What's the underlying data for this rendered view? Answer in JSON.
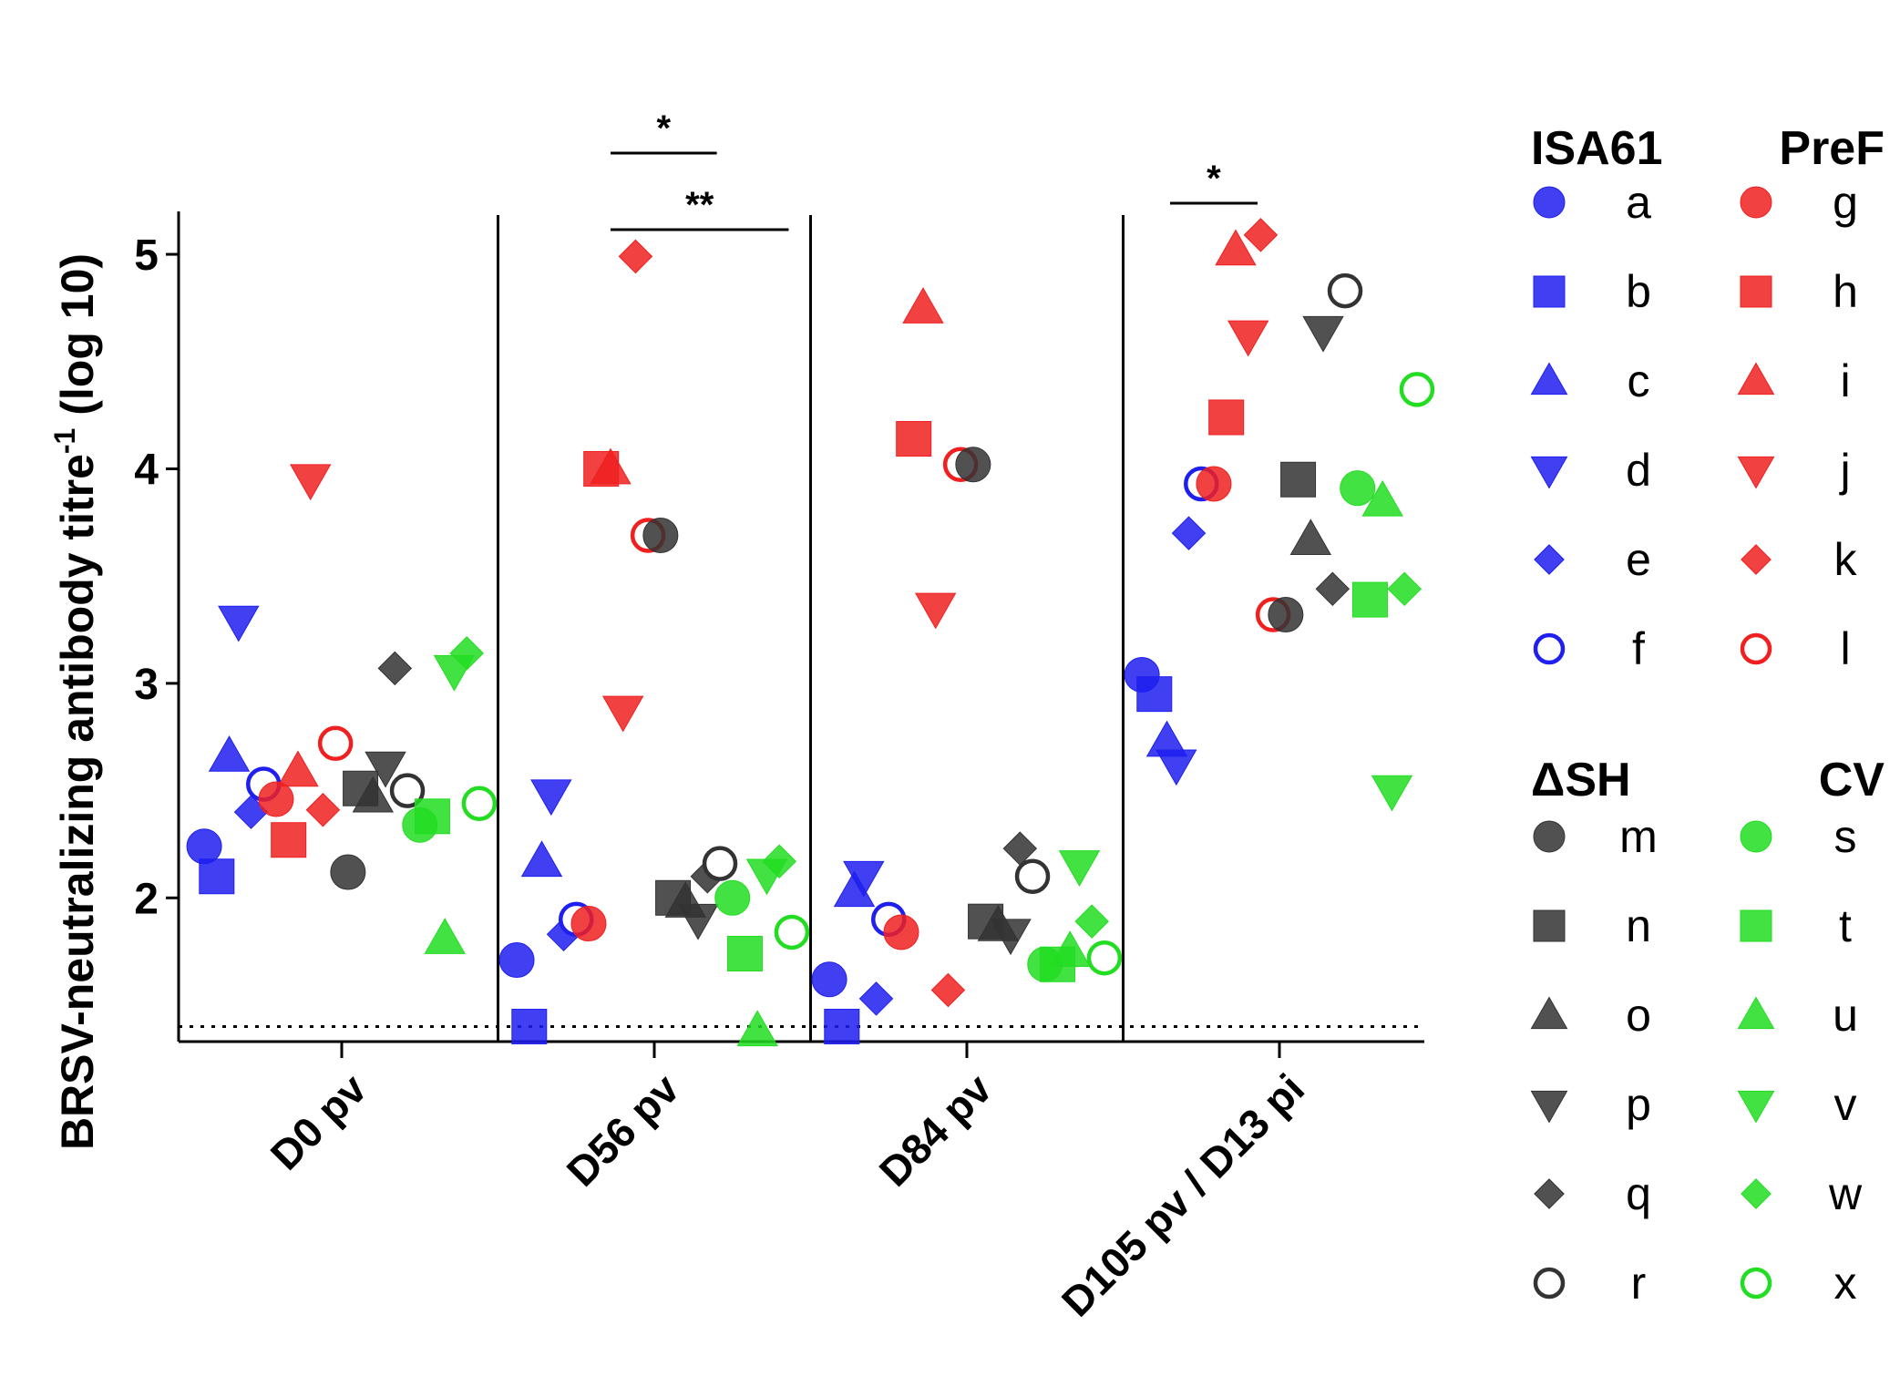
{
  "chart_data": {
    "type": "scatter",
    "ylabel": "BRSV-neutralizing antibody titre",
    "ylabel_sup": "-1",
    "ylabel_suffix": " (log 10)",
    "ylim": [
      1.33,
      5.2
    ],
    "yticks": [
      2,
      3,
      4,
      5
    ],
    "detection_limit": 1.4,
    "categories": [
      "D0 pv",
      "D56 pv",
      "D84 pv",
      "D105 pv / D13 pi"
    ],
    "significance": [
      {
        "label": "*",
        "from": 0.86,
        "to": 1.2
      },
      {
        "label": "**",
        "from": 0.86,
        "to": 1.43
      },
      {
        "label": "*",
        "from": 2.65,
        "to": 2.93
      }
    ],
    "colors": {
      "ISA61": "#1f1ff0",
      "PreF": "#f02020",
      "ΔSH": "#333333",
      "CV": "#22dd22"
    },
    "groups": [
      {
        "name": "ISA61",
        "animals": [
          {
            "id": "a",
            "shape": "circle",
            "fill": true
          },
          {
            "id": "b",
            "shape": "square",
            "fill": true
          },
          {
            "id": "c",
            "shape": "triangle-up",
            "fill": true
          },
          {
            "id": "d",
            "shape": "triangle-down",
            "fill": true
          },
          {
            "id": "e",
            "shape": "diamond",
            "fill": true
          },
          {
            "id": "f",
            "shape": "circle",
            "fill": false
          }
        ]
      },
      {
        "name": "PreF",
        "animals": [
          {
            "id": "g",
            "shape": "circle",
            "fill": true
          },
          {
            "id": "h",
            "shape": "square",
            "fill": true
          },
          {
            "id": "i",
            "shape": "triangle-up",
            "fill": true
          },
          {
            "id": "j",
            "shape": "triangle-down",
            "fill": true
          },
          {
            "id": "k",
            "shape": "diamond",
            "fill": true
          },
          {
            "id": "l",
            "shape": "circle",
            "fill": false
          }
        ]
      },
      {
        "name": "ΔSH",
        "animals": [
          {
            "id": "m",
            "shape": "circle",
            "fill": true
          },
          {
            "id": "n",
            "shape": "square",
            "fill": true
          },
          {
            "id": "o",
            "shape": "triangle-up",
            "fill": true
          },
          {
            "id": "p",
            "shape": "triangle-down",
            "fill": true
          },
          {
            "id": "q",
            "shape": "diamond",
            "fill": true
          },
          {
            "id": "r",
            "shape": "circle",
            "fill": false
          }
        ]
      },
      {
        "name": "CV",
        "animals": [
          {
            "id": "s",
            "shape": "circle",
            "fill": true
          },
          {
            "id": "t",
            "shape": "square",
            "fill": true
          },
          {
            "id": "u",
            "shape": "triangle-up",
            "fill": true
          },
          {
            "id": "v",
            "shape": "triangle-down",
            "fill": true
          },
          {
            "id": "w",
            "shape": "diamond",
            "fill": true
          },
          {
            "id": "x",
            "shape": "circle",
            "fill": false
          }
        ]
      }
    ],
    "points": [
      {
        "animal": "a",
        "x": -0.44,
        "y": 2.24
      },
      {
        "animal": "b",
        "x": -0.4,
        "y": 2.1
      },
      {
        "animal": "c",
        "x": -0.36,
        "y": 2.66
      },
      {
        "animal": "d",
        "x": -0.33,
        "y": 3.29
      },
      {
        "animal": "e",
        "x": -0.29,
        "y": 2.4
      },
      {
        "animal": "f",
        "x": -0.25,
        "y": 2.53
      },
      {
        "animal": "g",
        "x": -0.21,
        "y": 2.46
      },
      {
        "animal": "h",
        "x": -0.17,
        "y": 2.27
      },
      {
        "animal": "i",
        "x": -0.14,
        "y": 2.59
      },
      {
        "animal": "j",
        "x": -0.1,
        "y": 3.95
      },
      {
        "animal": "k",
        "x": -0.06,
        "y": 2.41
      },
      {
        "animal": "l",
        "x": -0.02,
        "y": 2.72
      },
      {
        "animal": "m",
        "x": 0.02,
        "y": 2.12
      },
      {
        "animal": "n",
        "x": 0.06,
        "y": 2.51
      },
      {
        "animal": "o",
        "x": 0.1,
        "y": 2.47
      },
      {
        "animal": "p",
        "x": 0.14,
        "y": 2.61
      },
      {
        "animal": "q",
        "x": 0.17,
        "y": 3.07
      },
      {
        "animal": "r",
        "x": 0.21,
        "y": 2.5
      },
      {
        "animal": "s",
        "x": 0.25,
        "y": 2.34
      },
      {
        "animal": "t",
        "x": 0.29,
        "y": 2.38
      },
      {
        "animal": "u",
        "x": 0.33,
        "y": 1.81
      },
      {
        "animal": "v",
        "x": 0.36,
        "y": 3.06
      },
      {
        "animal": "w",
        "x": 0.4,
        "y": 3.14
      },
      {
        "animal": "x",
        "x": 0.44,
        "y": 2.44
      },
      {
        "animal": "a",
        "x": 0.56,
        "y": 1.71
      },
      {
        "animal": "b",
        "x": 0.6,
        "y": 1.4
      },
      {
        "animal": "c",
        "x": 0.64,
        "y": 2.17
      },
      {
        "animal": "d",
        "x": 0.67,
        "y": 2.48
      },
      {
        "animal": "e",
        "x": 0.71,
        "y": 1.83
      },
      {
        "animal": "f",
        "x": 0.75,
        "y": 1.9
      },
      {
        "animal": "g",
        "x": 0.79,
        "y": 1.88
      },
      {
        "animal": "h",
        "x": 0.83,
        "y": 4.0
      },
      {
        "animal": "i",
        "x": 0.86,
        "y": 4.0
      },
      {
        "animal": "j",
        "x": 0.9,
        "y": 2.87
      },
      {
        "animal": "k",
        "x": 0.94,
        "y": 4.99
      },
      {
        "animal": "l",
        "x": 0.98,
        "y": 3.69
      },
      {
        "animal": "m",
        "x": 1.02,
        "y": 3.69
      },
      {
        "animal": "n",
        "x": 1.06,
        "y": 2.0
      },
      {
        "animal": "o",
        "x": 1.1,
        "y": 1.98
      },
      {
        "animal": "p",
        "x": 1.14,
        "y": 1.9
      },
      {
        "animal": "q",
        "x": 1.17,
        "y": 2.1
      },
      {
        "animal": "r",
        "x": 1.21,
        "y": 2.16
      },
      {
        "animal": "s",
        "x": 1.25,
        "y": 2.0
      },
      {
        "animal": "t",
        "x": 1.29,
        "y": 1.74
      },
      {
        "animal": "u",
        "x": 1.33,
        "y": 1.38
      },
      {
        "animal": "v",
        "x": 1.36,
        "y": 2.11
      },
      {
        "animal": "w",
        "x": 1.4,
        "y": 2.17
      },
      {
        "animal": "x",
        "x": 1.44,
        "y": 1.84
      },
      {
        "animal": "a",
        "x": 1.56,
        "y": 1.62
      },
      {
        "animal": "b",
        "x": 1.6,
        "y": 1.4
      },
      {
        "animal": "c",
        "x": 1.64,
        "y": 2.03
      },
      {
        "animal": "d",
        "x": 1.67,
        "y": 2.1
      },
      {
        "animal": "e",
        "x": 1.71,
        "y": 1.53
      },
      {
        "animal": "f",
        "x": 1.75,
        "y": 1.9
      },
      {
        "animal": "g",
        "x": 1.79,
        "y": 1.84
      },
      {
        "animal": "h",
        "x": 1.83,
        "y": 4.14
      },
      {
        "animal": "i",
        "x": 1.86,
        "y": 4.75
      },
      {
        "animal": "j",
        "x": 1.9,
        "y": 3.35
      },
      {
        "animal": "k",
        "x": 1.94,
        "y": 1.57
      },
      {
        "animal": "l",
        "x": 1.98,
        "y": 4.02
      },
      {
        "animal": "m",
        "x": 2.02,
        "y": 4.02
      },
      {
        "animal": "n",
        "x": 2.06,
        "y": 1.89
      },
      {
        "animal": "o",
        "x": 2.1,
        "y": 1.87
      },
      {
        "animal": "p",
        "x": 2.14,
        "y": 1.83
      },
      {
        "animal": "q",
        "x": 2.17,
        "y": 2.23
      },
      {
        "animal": "r",
        "x": 2.21,
        "y": 2.1
      },
      {
        "animal": "s",
        "x": 2.25,
        "y": 1.69
      },
      {
        "animal": "t",
        "x": 2.29,
        "y": 1.69
      },
      {
        "animal": "u",
        "x": 2.33,
        "y": 1.75
      },
      {
        "animal": "v",
        "x": 2.36,
        "y": 2.15
      },
      {
        "animal": "w",
        "x": 2.4,
        "y": 1.89
      },
      {
        "animal": "x",
        "x": 2.44,
        "y": 1.72
      },
      {
        "animal": "a",
        "x": 2.56,
        "y": 3.04
      },
      {
        "animal": "b",
        "x": 2.6,
        "y": 2.95
      },
      {
        "animal": "c",
        "x": 2.64,
        "y": 2.73
      },
      {
        "animal": "d",
        "x": 2.67,
        "y": 2.62
      },
      {
        "animal": "e",
        "x": 2.71,
        "y": 3.7
      },
      {
        "animal": "f",
        "x": 2.75,
        "y": 3.93
      },
      {
        "animal": "g",
        "x": 2.79,
        "y": 3.93
      },
      {
        "animal": "h",
        "x": 2.83,
        "y": 4.24
      },
      {
        "animal": "i",
        "x": 2.86,
        "y": 5.02
      },
      {
        "animal": "j",
        "x": 2.9,
        "y": 4.62
      },
      {
        "animal": "k",
        "x": 2.94,
        "y": 5.09
      },
      {
        "animal": "l",
        "x": 2.98,
        "y": 3.32
      },
      {
        "animal": "m",
        "x": 3.02,
        "y": 3.32
      },
      {
        "animal": "n",
        "x": 3.06,
        "y": 3.95
      },
      {
        "animal": "o",
        "x": 3.1,
        "y": 3.67
      },
      {
        "animal": "p",
        "x": 3.14,
        "y": 4.64
      },
      {
        "animal": "q",
        "x": 3.17,
        "y": 3.44
      },
      {
        "animal": "r",
        "x": 3.21,
        "y": 4.83
      },
      {
        "animal": "s",
        "x": 3.25,
        "y": 3.91
      },
      {
        "animal": "t",
        "x": 3.29,
        "y": 3.39
      },
      {
        "animal": "u",
        "x": 3.33,
        "y": 3.85
      },
      {
        "animal": "v",
        "x": 3.36,
        "y": 2.5
      },
      {
        "animal": "w",
        "x": 3.4,
        "y": 3.44
      },
      {
        "animal": "x",
        "x": 3.44,
        "y": 4.37
      }
    ]
  }
}
